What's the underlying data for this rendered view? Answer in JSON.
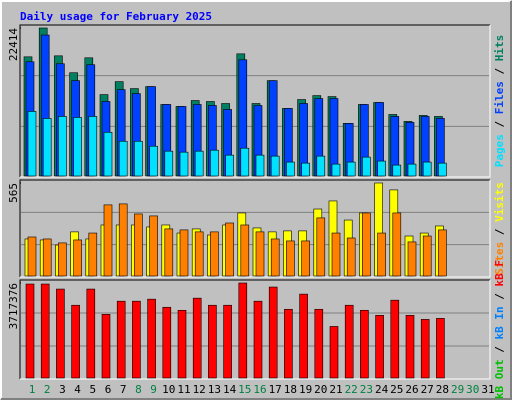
{
  "chart_data": {
    "type": "bar",
    "title": "Daily usage for February 2025",
    "categories": [
      "1",
      "2",
      "3",
      "4",
      "5",
      "6",
      "7",
      "8",
      "9",
      "10",
      "11",
      "12",
      "13",
      "14",
      "15",
      "16",
      "17",
      "18",
      "19",
      "20",
      "21",
      "22",
      "23",
      "24",
      "25",
      "26",
      "27",
      "28",
      "29",
      "30",
      "31"
    ],
    "category_colors": [
      "#008040",
      "#008040",
      "#000000",
      "#000000",
      "#000000",
      "#000000",
      "#000000",
      "#008040",
      "#008040",
      "#000000",
      "#000000",
      "#000000",
      "#000000",
      "#000000",
      "#008040",
      "#008040",
      "#000000",
      "#000000",
      "#000000",
      "#000000",
      "#000000",
      "#008040",
      "#008040",
      "#000000",
      "#000000",
      "#000000",
      "#000000",
      "#000000",
      "#008040",
      "#008040",
      "#000000"
    ],
    "panels": [
      {
        "ylim": [
          0,
          22414
        ],
        "yticks": [
          22414
        ],
        "series": [
          {
            "name": "Hits",
            "color": "#008060",
            "values": [
              18050,
              22414,
              18200,
              15640,
              17900,
              12330,
              14290,
              13240,
              13540,
              10830,
              10530,
              11430,
              11280,
              10980,
              18500,
              10980,
              14440,
              10230,
              11580,
              12180,
              12030,
              7970,
              10830,
              11130,
              9320,
              8270,
              9170,
              9020,
              null,
              null,
              null
            ]
          },
          {
            "name": "Files",
            "color": "#0040ff",
            "values": [
              17300,
              21350,
              17000,
              14440,
              16850,
              11280,
              13080,
              12480,
              13540,
              10830,
              10530,
              10830,
              10680,
              10080,
              17600,
              10680,
              14440,
              10230,
              10980,
              11730,
              11730,
              7970,
              10830,
              11130,
              9020,
              8120,
              9020,
              8720,
              null,
              null,
              null
            ]
          },
          {
            "name": "Pages",
            "color": "#00e0ff",
            "values": [
              9780,
              8720,
              9020,
              8870,
              9020,
              6620,
              5260,
              5260,
              4510,
              3760,
              3610,
              3760,
              3910,
              3160,
              4210,
              3160,
              3010,
              2110,
              1950,
              3010,
              1800,
              2110,
              2860,
              2260,
              1650,
              1800,
              2110,
              1950,
              null,
              null,
              null
            ]
          }
        ]
      },
      {
        "ylim": [
          0,
          565
        ],
        "yticks": [
          565
        ],
        "series": [
          {
            "name": "Visits",
            "color": "#ffff00",
            "values": [
              225,
              219,
              188,
              268,
              225,
              310,
              310,
              310,
              298,
              310,
              261,
              286,
              249,
              310,
              383,
              292,
              268,
              274,
              274,
              407,
              456,
              340,
              383,
              565,
              523,
              243,
              261,
              304,
              null,
              null,
              null
            ]
          },
          {
            "name": "Sites",
            "color": "#ff8000",
            "values": [
              237,
              225,
              201,
              219,
              261,
              432,
              438,
              377,
              365,
              286,
              280,
              268,
              268,
              322,
              310,
              268,
              225,
              213,
              213,
              353,
              261,
              231,
              383,
              261,
              383,
              207,
              243,
              280,
              null,
              null,
              null
            ]
          }
        ]
      },
      {
        "ylim": [
          0,
          3717376
        ],
        "yticks": [
          3717376
        ],
        "series": [
          {
            "name": "kB F",
            "color": "#ff0000",
            "values": [
              3677900,
              3677900,
              3480100,
              2847400,
              3480100,
              2491500,
              3005600,
              3005600,
              3084700,
              2768300,
              2649600,
              3124200,
              2847400,
              2847400,
              3717376,
              3005600,
              3559200,
              2689200,
              3282400,
              2689200,
              2016900,
              2847400,
              2649600,
              2451900,
              3045100,
              2451900,
              2293700,
              2333300,
              null,
              null,
              null
            ]
          }
        ],
        "legend_entries": [
          {
            "name": "kB In",
            "color": "#0080ff"
          },
          {
            "name": "kB Out",
            "color": "#00c000"
          }
        ]
      }
    ]
  }
}
